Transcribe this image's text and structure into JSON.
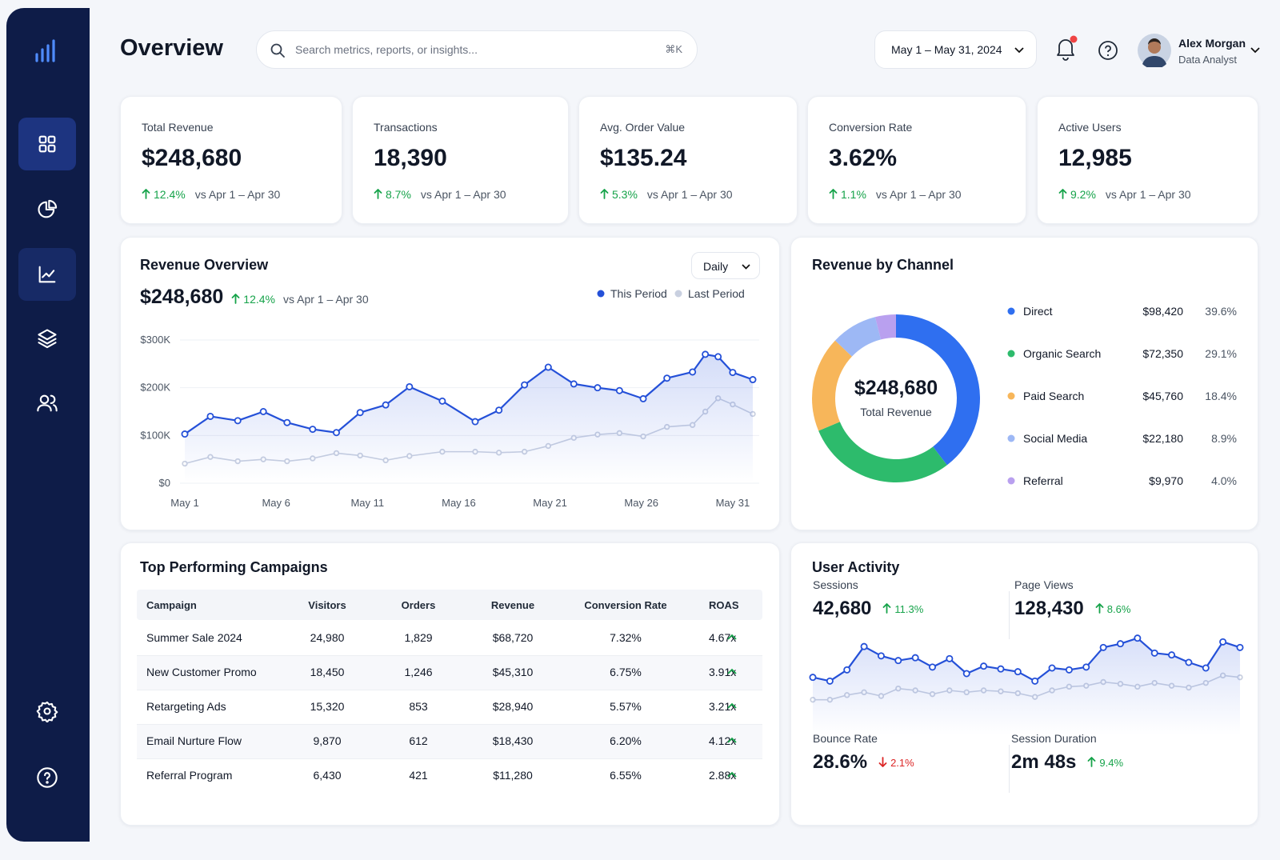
{
  "header": {
    "title": "Overview",
    "search_placeholder": "Search metrics, reports, or insights...",
    "search_shortcut": "⌘K",
    "date_range": "May 1 – May 31, 2024",
    "user_name": "Alex Morgan",
    "user_role": "Data Analyst"
  },
  "kpis": [
    {
      "label": "Total Revenue",
      "value": "$248,680",
      "change": "12.4%",
      "direction": "up",
      "compare": "vs Apr 1 – Apr 30"
    },
    {
      "label": "Transactions",
      "value": "18,390",
      "change": "8.7%",
      "direction": "up",
      "compare": "vs Apr 1 – Apr 30"
    },
    {
      "label": "Avg. Order Value",
      "value": "$135.24",
      "change": "5.3%",
      "direction": "up",
      "compare": "vs Apr 1 – Apr 30"
    },
    {
      "label": "Conversion Rate",
      "value": "3.62%",
      "change": "1.1%",
      "direction": "up",
      "compare": "vs Apr 1 – Apr 30"
    },
    {
      "label": "Active Users",
      "value": "12,985",
      "change": "9.2%",
      "direction": "up",
      "compare": "vs Apr 1 – Apr 30"
    }
  ],
  "revenue_overview": {
    "title": "Revenue Overview",
    "period_select": "Daily",
    "total": "$248,680",
    "change": "12.4%",
    "direction": "up",
    "compare": "vs Apr 1 – Apr 30",
    "chart_data": {
      "type": "line",
      "x": [
        1,
        2.4,
        3.9,
        5.3,
        6.6,
        8,
        9.3,
        10.6,
        12,
        13.3,
        15.1,
        16.9,
        18.2,
        19.6,
        20.9,
        22.3,
        23.6,
        24.8,
        26.1,
        27.4,
        28.8,
        29.5,
        30.2,
        31,
        32.1
      ],
      "xlim": [
        1,
        32.1
      ],
      "xticks": [
        {
          "value": 1,
          "label": "May 1"
        },
        {
          "value": 6,
          "label": "May 6"
        },
        {
          "value": 11,
          "label": "May 11"
        },
        {
          "value": 16,
          "label": "May 16"
        },
        {
          "value": 21,
          "label": "May 21"
        },
        {
          "value": 26,
          "label": "May 26"
        },
        {
          "value": 31,
          "label": "May 31"
        }
      ],
      "ylim": [
        0,
        300000
      ],
      "yticks": [
        {
          "value": 0,
          "label": "$0"
        },
        {
          "value": 100000,
          "label": "$100K"
        },
        {
          "value": 200000,
          "label": "$200K"
        },
        {
          "value": 300000,
          "label": "$300K"
        }
      ],
      "grid": true,
      "series": [
        {
          "name": "This Period",
          "color": "#2450d8",
          "values": [
            103000,
            140000,
            131000,
            150000,
            127000,
            113000,
            106000,
            148000,
            164000,
            202000,
            172000,
            129000,
            153000,
            206000,
            243000,
            208000,
            200000,
            194000,
            177000,
            220000,
            233000,
            270000,
            265000,
            232000,
            217000
          ]
        },
        {
          "name": "Last Period",
          "color": "#c9d0e0",
          "values": [
            41000,
            55000,
            46000,
            50000,
            46000,
            52000,
            63000,
            58000,
            48000,
            57000,
            66000,
            66000,
            64000,
            66000,
            78000,
            95000,
            102000,
            105000,
            98000,
            118000,
            122000,
            150000,
            178000,
            165000,
            145000
          ]
        }
      ]
    }
  },
  "revenue_by_channel": {
    "title": "Revenue by Channel",
    "center_value": "$248,680",
    "center_label": "Total Revenue",
    "chart_data": {
      "type": "pie",
      "categories": [
        "Direct",
        "Organic Search",
        "Paid Search",
        "Social Media",
        "Referral"
      ],
      "amounts": [
        "$98,420",
        "$72,350",
        "$45,760",
        "$22,180",
        "$9,970"
      ],
      "values": [
        39.6,
        29.1,
        18.4,
        8.9,
        4.0
      ],
      "value_labels": [
        "39.6%",
        "29.1%",
        "18.4%",
        "8.9%",
        "4.0%"
      ],
      "colors": [
        "#2f6ff0",
        "#2dbb6c",
        "#f7b65a",
        "#9db8f5",
        "#b9a0ef"
      ]
    }
  },
  "campaigns": {
    "title": "Top Performing Campaigns",
    "columns": [
      "Campaign",
      "Visitors",
      "Orders",
      "Revenue",
      "Conversion Rate",
      "ROAS"
    ],
    "rows": [
      [
        "Summer Sale 2024",
        "24,980",
        "1,829",
        "$68,720",
        "7.32%",
        "4.67x"
      ],
      [
        "New Customer Promo",
        "18,450",
        "1,246",
        "$45,310",
        "6.75%",
        "3.91x"
      ],
      [
        "Retargeting Ads",
        "15,320",
        "853",
        "$28,940",
        "5.57%",
        "3.21x"
      ],
      [
        "Email Nurture Flow",
        "9,870",
        "612",
        "$18,430",
        "6.20%",
        "4.12x"
      ],
      [
        "Referral Program",
        "6,430",
        "421",
        "$11,280",
        "6.55%",
        "2.88x"
      ]
    ]
  },
  "user_activity": {
    "title": "User Activity",
    "metrics": [
      {
        "label": "Sessions",
        "value": "42,680",
        "change": "11.3%",
        "direction": "up"
      },
      {
        "label": "Page Views",
        "value": "128,430",
        "change": "8.6%",
        "direction": "up"
      },
      {
        "label": "Bounce Rate",
        "value": "28.6%",
        "change": "2.1%",
        "direction": "down"
      },
      {
        "label": "Session Duration",
        "value": "2m 48s",
        "change": "9.4%",
        "direction": "up"
      }
    ],
    "chart_data": {
      "type": "line",
      "categories": [
        null,
        null,
        null,
        null,
        null,
        null,
        null,
        null,
        null,
        null,
        null,
        null,
        null,
        null,
        null,
        null,
        null,
        null,
        null,
        null,
        null,
        null,
        null,
        null,
        null,
        null
      ],
      "ylim": [
        0,
        120
      ],
      "series": [
        {
          "color": "#2450d8",
          "values": [
            62,
            58,
            70,
            95,
            85,
            80,
            83,
            73,
            82,
            66,
            74,
            71,
            68,
            58,
            72,
            70,
            73,
            94,
            98,
            104,
            88,
            86,
            78,
            72,
            100,
            94
          ]
        },
        {
          "color": "#c9d0e0",
          "values": [
            38,
            38,
            43,
            46,
            42,
            50,
            48,
            44,
            48,
            46,
            48,
            47,
            45,
            41,
            48,
            52,
            53,
            57,
            55,
            52,
            56,
            53,
            51,
            56,
            64,
            62
          ]
        }
      ]
    }
  }
}
